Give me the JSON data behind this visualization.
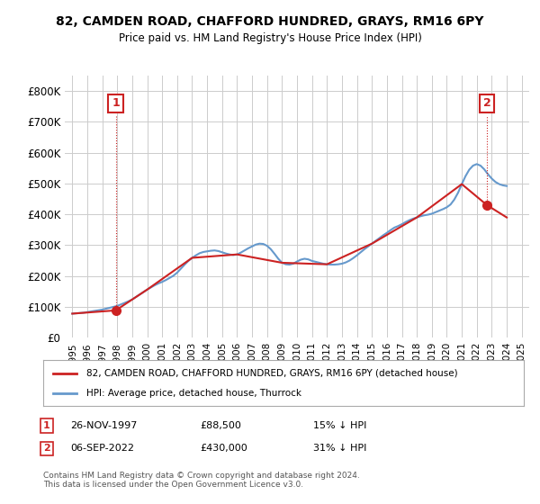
{
  "title": "82, CAMDEN ROAD, CHAFFORD HUNDRED, GRAYS, RM16 6PY",
  "subtitle": "Price paid vs. HM Land Registry's House Price Index (HPI)",
  "ylabel": "",
  "xlabel": "",
  "ylim": [
    0,
    850000
  ],
  "yticks": [
    0,
    100000,
    200000,
    300000,
    400000,
    500000,
    600000,
    700000,
    800000
  ],
  "ytick_labels": [
    "£0",
    "£100K",
    "£200K",
    "£300K",
    "£400K",
    "£500K",
    "£600K",
    "£700K",
    "£800K"
  ],
  "hpi_color": "#6699cc",
  "price_color": "#cc2222",
  "marker_color": "#cc2222",
  "background_color": "#ffffff",
  "grid_color": "#cccccc",
  "sale1": {
    "date": 1997.9,
    "price": 88500,
    "label": "1"
  },
  "sale2": {
    "date": 2022.68,
    "price": 430000,
    "label": "2"
  },
  "legend1": "82, CAMDEN ROAD, CHAFFORD HUNDRED, GRAYS, RM16 6PY (detached house)",
  "legend2": "HPI: Average price, detached house, Thurrock",
  "note1": "1    26-NOV-1997         £88,500          15% ↓ HPI",
  "note2": "2    06-SEP-2022         £430,000        31% ↓ HPI",
  "footer": "Contains HM Land Registry data © Crown copyright and database right 2024.\nThis data is licensed under the Open Government Licence v3.0.",
  "hpi_x": [
    1995.0,
    1995.25,
    1995.5,
    1995.75,
    1996.0,
    1996.25,
    1996.5,
    1996.75,
    1997.0,
    1997.25,
    1997.5,
    1997.75,
    1998.0,
    1998.25,
    1998.5,
    1998.75,
    1999.0,
    1999.25,
    1999.5,
    1999.75,
    2000.0,
    2000.25,
    2000.5,
    2000.75,
    2001.0,
    2001.25,
    2001.5,
    2001.75,
    2002.0,
    2002.25,
    2002.5,
    2002.75,
    2003.0,
    2003.25,
    2003.5,
    2003.75,
    2004.0,
    2004.25,
    2004.5,
    2004.75,
    2005.0,
    2005.25,
    2005.5,
    2005.75,
    2006.0,
    2006.25,
    2006.5,
    2006.75,
    2007.0,
    2007.25,
    2007.5,
    2007.75,
    2008.0,
    2008.25,
    2008.5,
    2008.75,
    2009.0,
    2009.25,
    2009.5,
    2009.75,
    2010.0,
    2010.25,
    2010.5,
    2010.75,
    2011.0,
    2011.25,
    2011.5,
    2011.75,
    2012.0,
    2012.25,
    2012.5,
    2012.75,
    2013.0,
    2013.25,
    2013.5,
    2013.75,
    2014.0,
    2014.25,
    2014.5,
    2014.75,
    2015.0,
    2015.25,
    2015.5,
    2015.75,
    2016.0,
    2016.25,
    2016.5,
    2016.75,
    2017.0,
    2017.25,
    2017.5,
    2017.75,
    2018.0,
    2018.25,
    2018.5,
    2018.75,
    2019.0,
    2019.25,
    2019.5,
    2019.75,
    2020.0,
    2020.25,
    2020.5,
    2020.75,
    2021.0,
    2021.25,
    2021.5,
    2021.75,
    2022.0,
    2022.25,
    2022.5,
    2022.75,
    2023.0,
    2023.25,
    2023.5,
    2023.75,
    2024.0
  ],
  "hpi_y": [
    78000,
    79000,
    80000,
    81000,
    83000,
    85000,
    87000,
    89000,
    91000,
    94000,
    97000,
    100000,
    103000,
    108000,
    113000,
    118000,
    124000,
    132000,
    140000,
    148000,
    156000,
    163000,
    170000,
    176000,
    181000,
    187000,
    194000,
    201000,
    211000,
    224000,
    237000,
    249000,
    259000,
    267000,
    274000,
    278000,
    280000,
    282000,
    283000,
    281000,
    277000,
    273000,
    270000,
    268000,
    270000,
    276000,
    283000,
    290000,
    296000,
    302000,
    305000,
    304000,
    298000,
    287000,
    272000,
    256000,
    243000,
    238000,
    237000,
    240000,
    247000,
    253000,
    256000,
    254000,
    249000,
    246000,
    243000,
    240000,
    238000,
    237000,
    237000,
    238000,
    240000,
    244000,
    250000,
    258000,
    267000,
    277000,
    287000,
    296000,
    305000,
    314000,
    323000,
    332000,
    340000,
    349000,
    357000,
    362000,
    368000,
    375000,
    381000,
    386000,
    390000,
    394000,
    397000,
    399000,
    402000,
    407000,
    412000,
    417000,
    423000,
    432000,
    448000,
    470000,
    498000,
    524000,
    545000,
    558000,
    563000,
    558000,
    546000,
    530000,
    516000,
    505000,
    498000,
    494000,
    492000
  ],
  "price_x": [
    1995.0,
    1997.9,
    2000.0,
    2003.0,
    2006.0,
    2009.0,
    2012.0,
    2015.0,
    2018.0,
    2021.0,
    2022.68,
    2024.0
  ],
  "price_y": [
    78000,
    88500,
    156000,
    259000,
    270000,
    243000,
    238000,
    305000,
    390000,
    498000,
    430000,
    390000
  ],
  "xtick_years": [
    1995,
    1996,
    1997,
    1998,
    1999,
    2000,
    2001,
    2002,
    2003,
    2004,
    2005,
    2006,
    2007,
    2008,
    2009,
    2010,
    2011,
    2012,
    2013,
    2014,
    2015,
    2016,
    2017,
    2018,
    2019,
    2020,
    2021,
    2022,
    2023,
    2024,
    2025
  ]
}
